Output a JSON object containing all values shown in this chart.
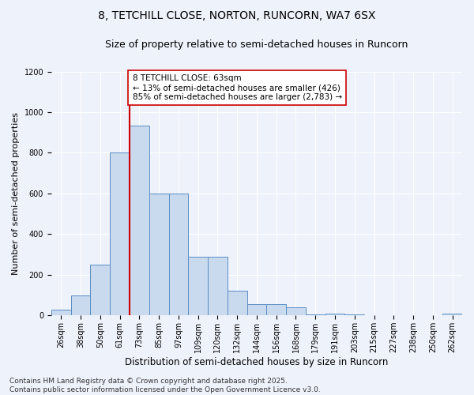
{
  "title_line1": "8, TETCHILL CLOSE, NORTON, RUNCORN, WA7 6SX",
  "title_line2": "Size of property relative to semi-detached houses in Runcorn",
  "xlabel": "Distribution of semi-detached houses by size in Runcorn",
  "ylabel": "Number of semi-detached properties",
  "categories": [
    "26sqm",
    "38sqm",
    "50sqm",
    "61sqm",
    "73sqm",
    "85sqm",
    "97sqm",
    "109sqm",
    "120sqm",
    "132sqm",
    "144sqm",
    "156sqm",
    "168sqm",
    "179sqm",
    "191sqm",
    "203sqm",
    "215sqm",
    "227sqm",
    "238sqm",
    "250sqm",
    "262sqm"
  ],
  "values": [
    30,
    100,
    250,
    800,
    935,
    600,
    600,
    290,
    290,
    120,
    55,
    55,
    40,
    5,
    10,
    5,
    3,
    2,
    2,
    2,
    10
  ],
  "bar_color": "#c9d9ee",
  "bar_edge_color": "#5b8ec4",
  "vline_color": "#cc0000",
  "vline_position": 3.5,
  "annotation_text": "8 TETCHILL CLOSE: 63sqm\n← 13% of semi-detached houses are smaller (426)\n85% of semi-detached houses are larger (2,783) →",
  "annotation_box_color": "#ffffff",
  "annotation_box_edge": "#cc0000",
  "footer_text": "Contains HM Land Registry data © Crown copyright and database right 2025.\nContains public sector information licensed under the Open Government Licence v3.0.",
  "ylim": [
    0,
    1200
  ],
  "yticks": [
    0,
    200,
    400,
    600,
    800,
    1000,
    1200
  ],
  "background_color": "#eef2fb",
  "grid_color": "#ffffff",
  "title_fontsize": 10,
  "subtitle_fontsize": 9,
  "tick_fontsize": 7,
  "footer_fontsize": 6.5,
  "xlabel_fontsize": 8.5,
  "ylabel_fontsize": 8
}
